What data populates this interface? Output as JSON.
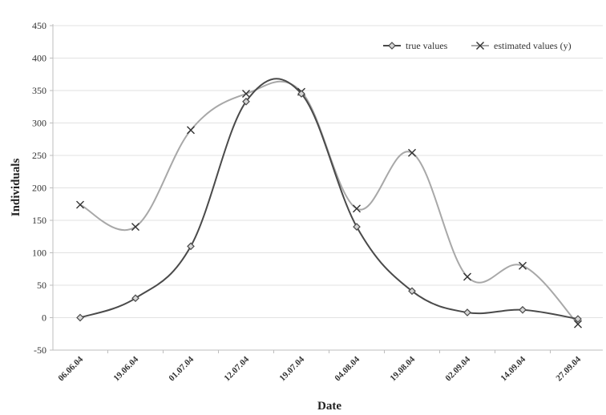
{
  "chart_data": {
    "type": "line",
    "title": "",
    "xlabel": "Date",
    "ylabel": "Individuals",
    "ylim": [
      -50,
      450
    ],
    "y_ticks": [
      -50,
      0,
      50,
      100,
      150,
      200,
      250,
      300,
      350,
      400,
      450
    ],
    "x_tick_labels": [
      "06.06.04",
      "19.06.04",
      "01.07.04",
      "12.07.04",
      "19.07.04",
      "04.08.04",
      "19.08.04",
      "02.09.04",
      "14.09.04",
      "27.09.04"
    ],
    "grid": "horizontal",
    "legend_position": "top-right",
    "series": [
      {
        "name": "true values",
        "color": "#4a4a4a",
        "marker": "diamond",
        "x": [
          "06.06.04",
          "19.06.04",
          "01.07.04",
          "12.07.04",
          "19.07.04",
          "04.08.04",
          "19.08.04",
          "02.09.04",
          "14.09.04",
          "27.09.04"
        ],
        "values": [
          0,
          30,
          110,
          333,
          345,
          140,
          41,
          8,
          12,
          -2
        ]
      },
      {
        "name": "estimated values (y)",
        "color": "#a8a8a8",
        "marker": "cross",
        "x": [
          "06.06.04",
          "19.06.04",
          "01.07.04",
          "12.07.04",
          "19.07.04",
          "04.08.04",
          "19.08.04",
          "02.09.04",
          "14.09.04",
          "27.09.04"
        ],
        "values": [
          174,
          140,
          289,
          345,
          348,
          168,
          254,
          63,
          80,
          -10
        ]
      }
    ]
  }
}
